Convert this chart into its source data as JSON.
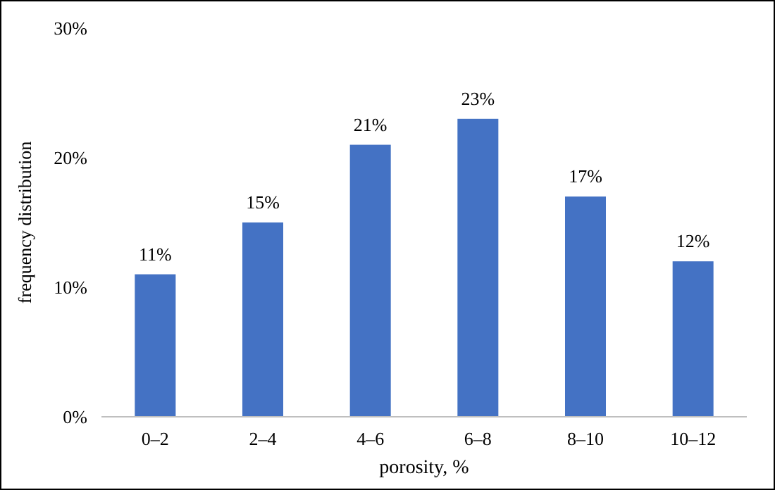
{
  "chart_data": {
    "type": "bar",
    "xlabel": "porosity, %",
    "ylabel": "frequency distribution",
    "categories": [
      "0–2",
      "2–4",
      "4–6",
      "6–8",
      "8–10",
      "10–12"
    ],
    "values": [
      11,
      15,
      21,
      23,
      17,
      12
    ],
    "value_labels": [
      "11%",
      "15%",
      "21%",
      "23%",
      "17%",
      "12%"
    ],
    "color": "#4472c4",
    "ylim": [
      0,
      30
    ],
    "yticks": [
      {
        "value": 0,
        "label": "0%"
      },
      {
        "value": 10,
        "label": "10%"
      },
      {
        "value": 20,
        "label": "20%"
      },
      {
        "value": 30,
        "label": "30%"
      }
    ],
    "grid": false
  }
}
